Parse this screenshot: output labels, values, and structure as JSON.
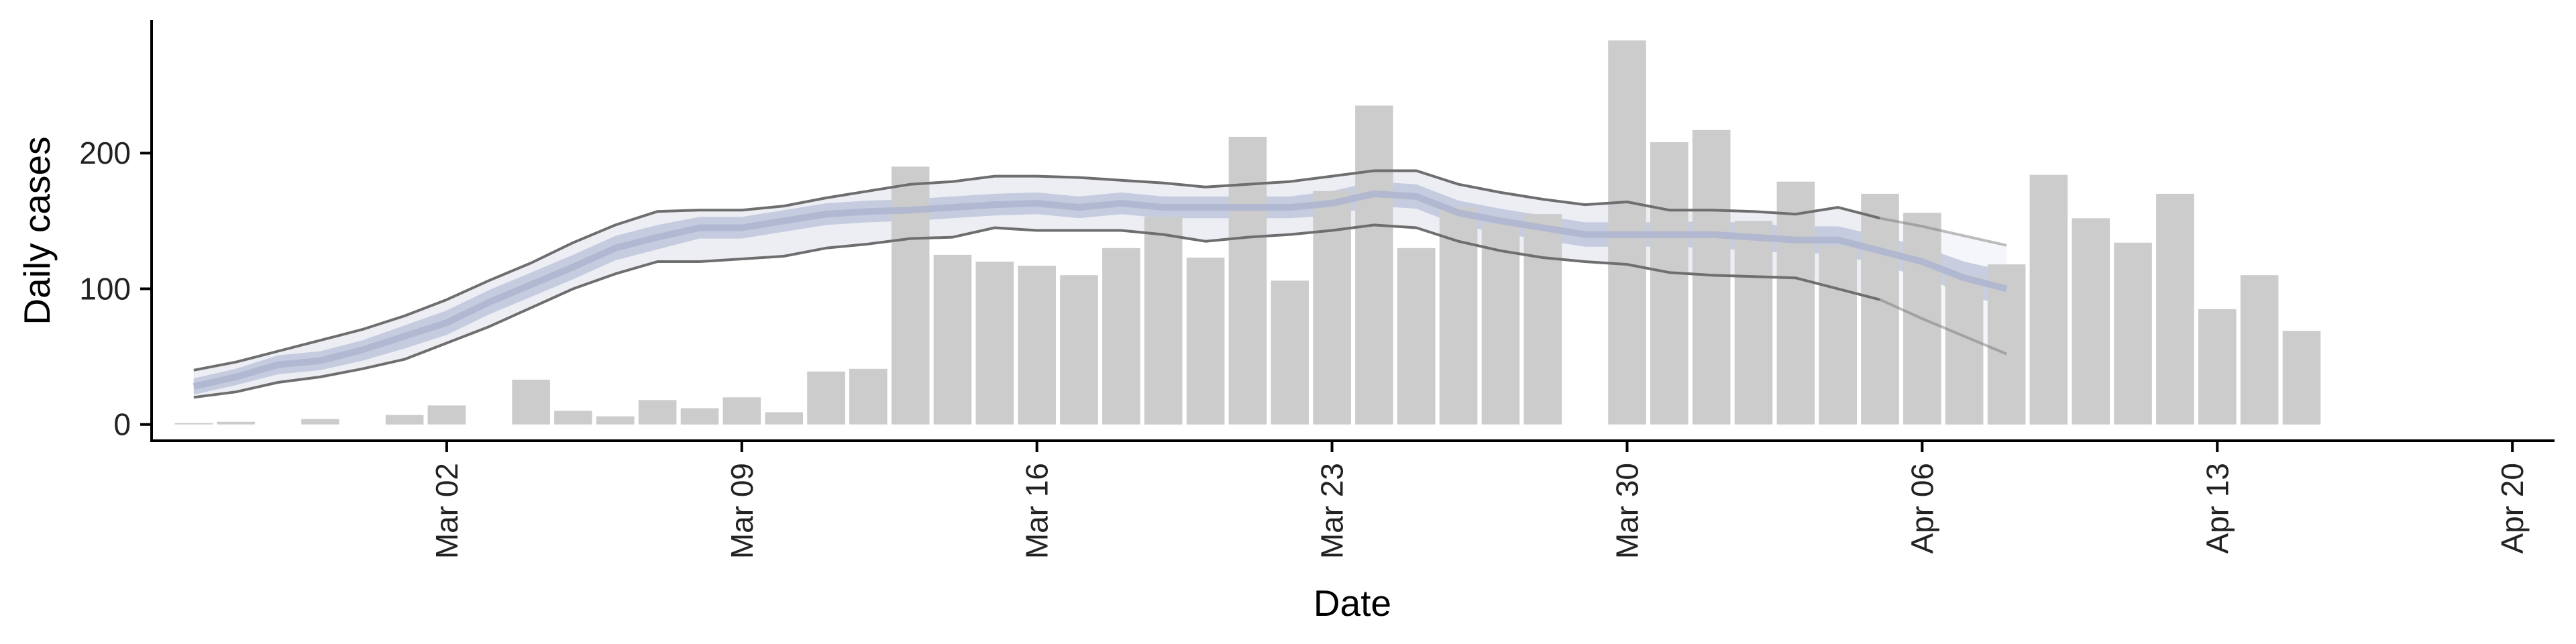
{
  "chart_data": {
    "type": "bar",
    "xlabel": "Date",
    "ylabel": "Daily cases",
    "x_start": "2020-02-25",
    "x_range": [
      "2020-02-24",
      "2020-04-21"
    ],
    "ylim": [
      -12,
      298
    ],
    "grid": false,
    "legend": "none",
    "x_ticks": [
      {
        "date": "2020-03-02",
        "label": "Mar 02"
      },
      {
        "date": "2020-03-09",
        "label": "Mar 09"
      },
      {
        "date": "2020-03-16",
        "label": "Mar 16"
      },
      {
        "date": "2020-03-23",
        "label": "Mar 23"
      },
      {
        "date": "2020-03-30",
        "label": "Mar 30"
      },
      {
        "date": "2020-04-06",
        "label": "Apr 06"
      },
      {
        "date": "2020-04-13",
        "label": "Apr 13"
      },
      {
        "date": "2020-04-20",
        "label": "Apr 20"
      }
    ],
    "y_ticks": [
      {
        "value": 0,
        "label": "0"
      },
      {
        "value": 100,
        "label": "100"
      },
      {
        "value": 200,
        "label": "200"
      }
    ],
    "bars": {
      "color": "#cccccc",
      "values": [
        1,
        2,
        0,
        4,
        0,
        7,
        14,
        0,
        33,
        10,
        6,
        18,
        12,
        20,
        9,
        39,
        41,
        190,
        125,
        120,
        117,
        110,
        130,
        153,
        123,
        212,
        106,
        172,
        235,
        130,
        160,
        148,
        155,
        0,
        283,
        208,
        217,
        150,
        179,
        132,
        170,
        156,
        109,
        118,
        184,
        152,
        134,
        170,
        85,
        110,
        69
      ]
    },
    "series": [
      {
        "role": "median",
        "color": "#b9c0d6",
        "values": [
          28,
          35,
          44,
          47,
          55,
          65,
          75,
          90,
          103,
          116,
          130,
          138,
          145,
          145,
          150,
          155,
          157,
          158,
          160,
          162,
          163,
          160,
          163,
          160,
          160,
          160,
          160,
          163,
          170,
          168,
          156,
          150,
          145,
          140,
          140,
          140,
          140,
          138,
          136,
          136,
          128,
          120,
          108,
          100
        ]
      },
      {
        "role": "inner_low",
        "color": "#b9c0d6",
        "values": [
          22,
          29,
          37,
          40,
          47,
          56,
          66,
          81,
          94,
          107,
          121,
          129,
          137,
          137,
          142,
          147,
          149,
          150,
          152,
          154,
          155,
          152,
          155,
          152,
          152,
          152,
          152,
          154,
          161,
          159,
          147,
          141,
          136,
          131,
          131,
          131,
          130,
          128,
          126,
          126,
          117,
          109,
          96,
          87
        ]
      },
      {
        "role": "inner_high",
        "color": "#b9c0d6",
        "values": [
          34,
          41,
          51,
          54,
          62,
          73,
          84,
          99,
          112,
          125,
          139,
          147,
          153,
          153,
          158,
          163,
          165,
          166,
          168,
          170,
          171,
          168,
          171,
          168,
          168,
          168,
          168,
          172,
          179,
          177,
          165,
          159,
          154,
          149,
          149,
          149,
          150,
          148,
          146,
          146,
          139,
          131,
          120,
          113
        ]
      },
      {
        "role": "lower_90",
        "color": "#6e6e6e",
        "values": [
          20,
          24,
          31,
          35,
          41,
          48,
          60,
          72,
          86,
          100,
          111,
          120,
          120,
          122,
          124,
          130,
          133,
          137,
          138,
          145,
          143,
          143,
          143,
          140,
          135,
          138,
          140,
          143,
          147,
          145,
          135,
          128,
          123,
          120,
          118,
          112,
          110,
          109,
          108,
          100,
          92,
          78,
          65,
          52
        ]
      },
      {
        "role": "upper_90",
        "color": "#6e6e6e",
        "values": [
          40,
          46,
          54,
          62,
          70,
          80,
          92,
          106,
          119,
          134,
          147,
          157,
          158,
          158,
          161,
          167,
          172,
          177,
          179,
          183,
          183,
          182,
          180,
          178,
          175,
          177,
          179,
          183,
          187,
          187,
          177,
          171,
          166,
          162,
          164,
          158,
          158,
          157,
          155,
          160,
          152,
          146,
          139,
          132
        ]
      }
    ],
    "forecast_points": 3,
    "band_colors": {
      "outer": "#eceef4",
      "inner": "#bfc6da",
      "forecast_outer": "#f5f6f9"
    }
  }
}
